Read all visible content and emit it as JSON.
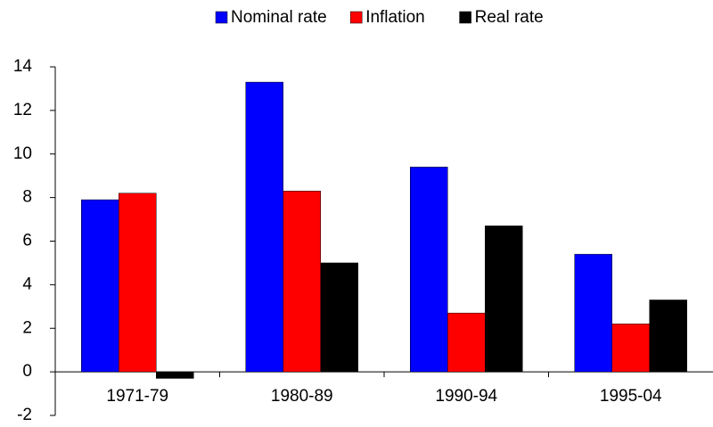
{
  "chart_data": {
    "type": "bar",
    "categories": [
      "1971-79",
      "1980-89",
      "1990-94",
      "1995-04"
    ],
    "series": [
      {
        "name": "Nominal rate",
        "color": "#0000ff",
        "values": [
          7.9,
          13.3,
          9.4,
          5.4
        ]
      },
      {
        "name": "Inflation",
        "color": "#ff0000",
        "values": [
          8.2,
          8.3,
          2.7,
          2.2
        ]
      },
      {
        "name": "Real rate",
        "color": "#000000",
        "values": [
          -0.3,
          5.0,
          6.7,
          3.3
        ]
      }
    ],
    "ylim": [
      -2,
      14
    ],
    "yticks": [
      -2,
      0,
      2,
      4,
      6,
      8,
      10,
      12,
      14
    ],
    "grid": false,
    "legend": "top"
  }
}
